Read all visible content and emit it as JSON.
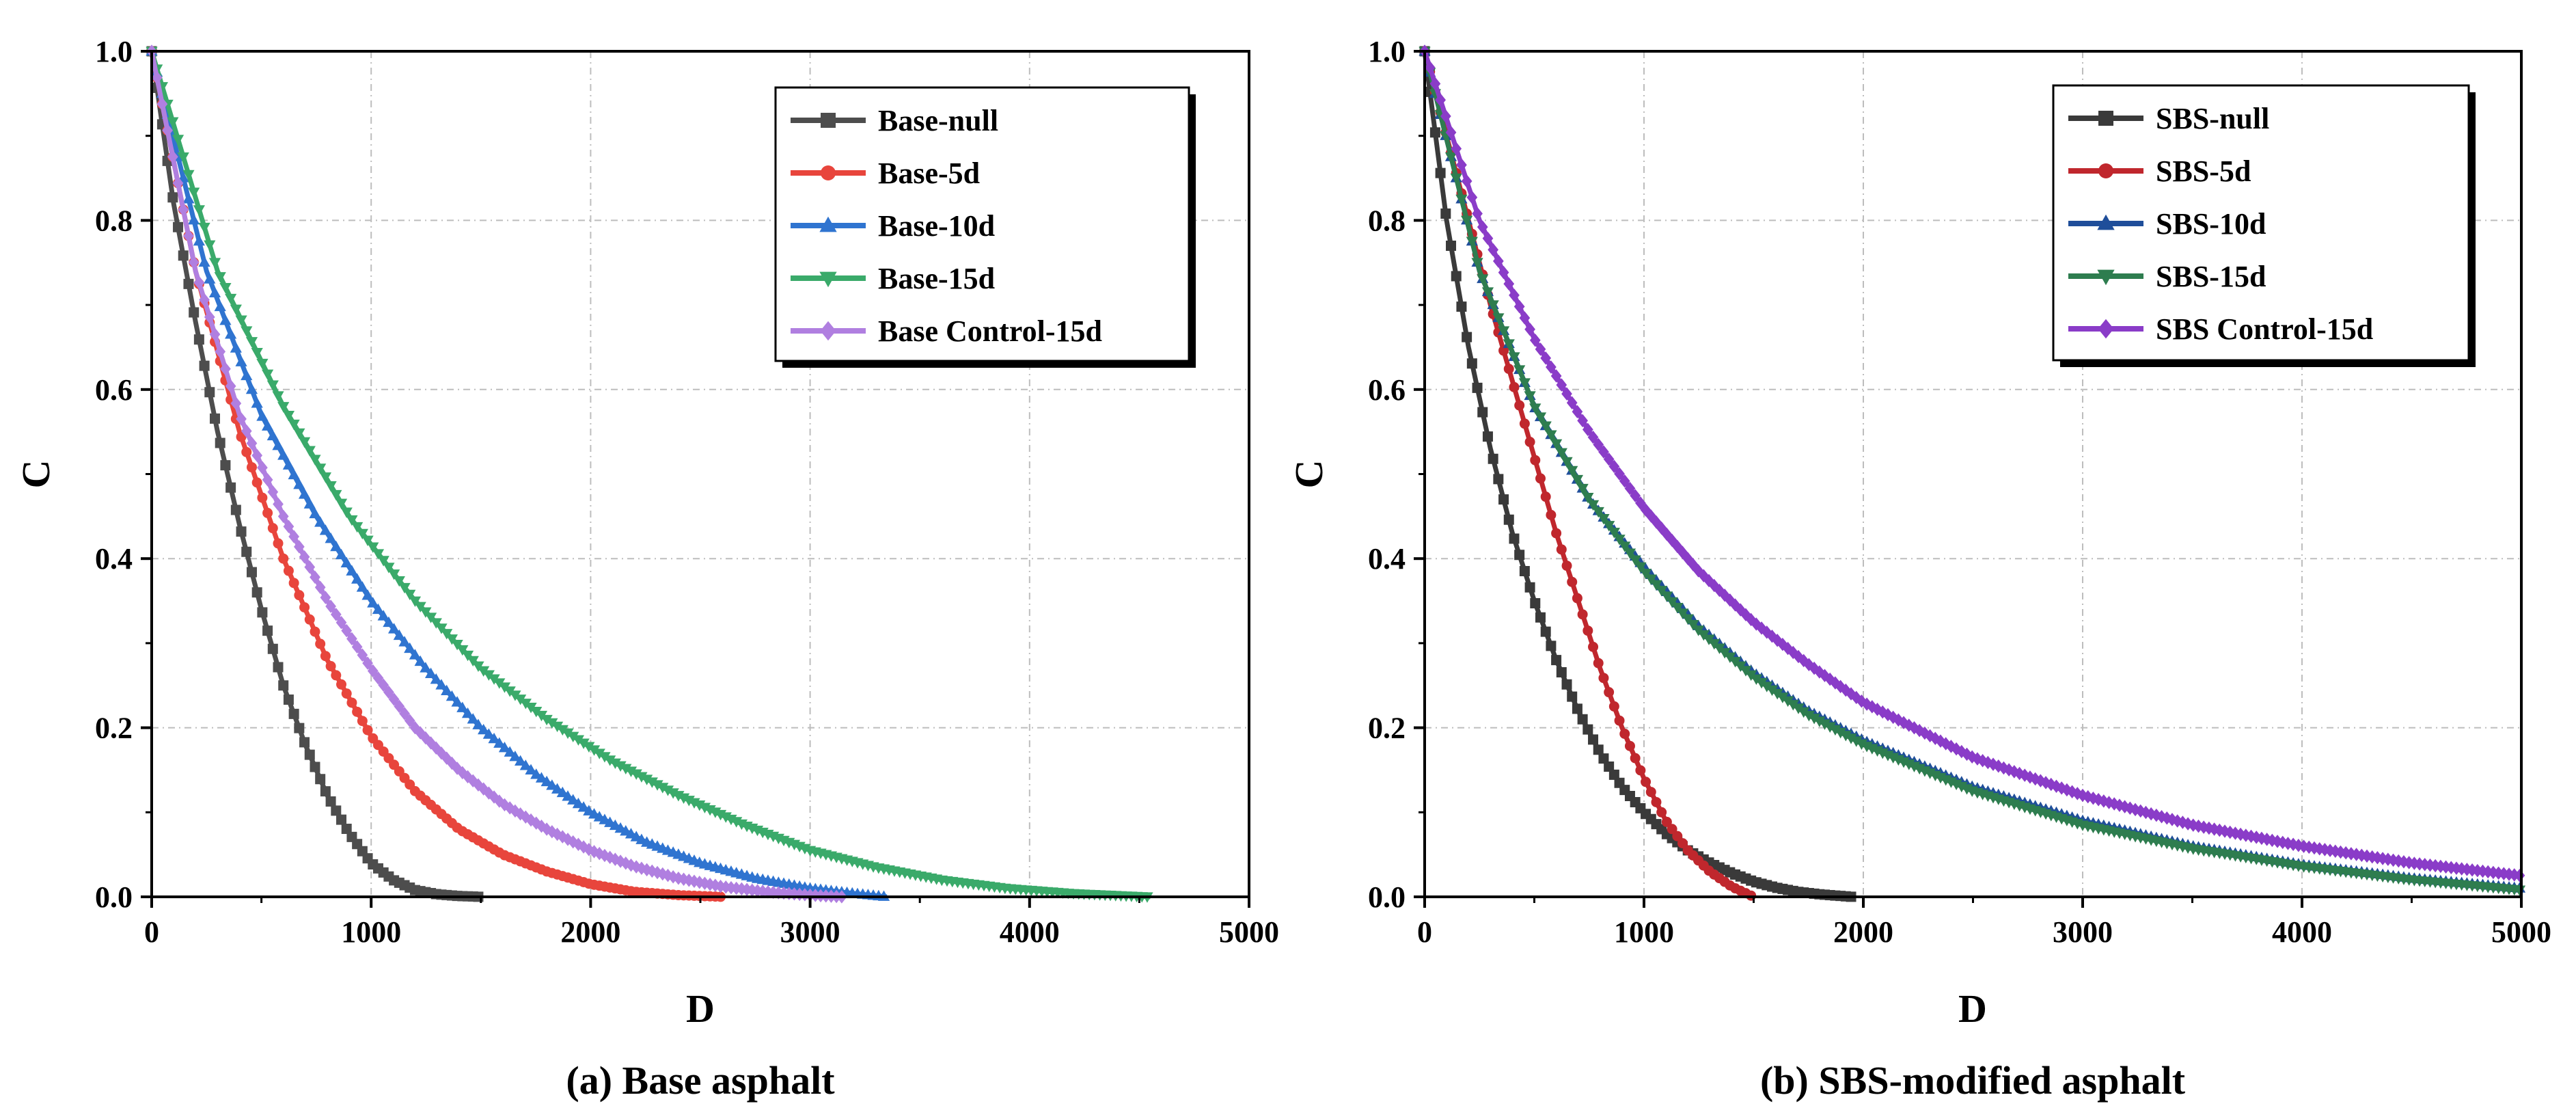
{
  "chart_data": [
    {
      "type": "line",
      "caption": "(a) Base asphalt",
      "xlabel": "D",
      "ylabel": "C",
      "xlim": [
        0,
        5000
      ],
      "ylim": [
        0,
        1.0
      ],
      "xticks": [
        "0",
        "1000",
        "2000",
        "3000",
        "4000",
        "5000"
      ],
      "yticks": [
        "0.0",
        "0.2",
        "0.4",
        "0.6",
        "0.8",
        "1.0"
      ],
      "grid": true,
      "legend_position": "top-right",
      "series": [
        {
          "name": "Base-null",
          "color": "#4d4d4d",
          "marker": "square",
          "x": [
            0,
            100,
            200,
            300,
            400,
            500,
            600,
            700,
            800,
            900,
            1000,
            1100,
            1200,
            1300,
            1400,
            1500
          ],
          "y": [
            1.0,
            0.82,
            0.68,
            0.55,
            0.44,
            0.34,
            0.25,
            0.18,
            0.12,
            0.075,
            0.04,
            0.02,
            0.008,
            0.003,
            0.001,
            0.0
          ]
        },
        {
          "name": "Base-5d",
          "color": "#e8453c",
          "marker": "circle",
          "x": [
            0,
            200,
            400,
            600,
            800,
            1000,
            1200,
            1400,
            1600,
            1800,
            2000,
            2200,
            2400,
            2600
          ],
          "y": [
            1.0,
            0.74,
            0.55,
            0.4,
            0.28,
            0.19,
            0.125,
            0.08,
            0.05,
            0.03,
            0.015,
            0.006,
            0.002,
            0.0
          ]
        },
        {
          "name": "Base-10d",
          "color": "#2f74d0",
          "marker": "triangle-up",
          "x": [
            0,
            250,
            500,
            750,
            1000,
            1250,
            1500,
            1750,
            2000,
            2250,
            2500,
            2750,
            3000,
            3200,
            3350
          ],
          "y": [
            1.0,
            0.74,
            0.57,
            0.45,
            0.35,
            0.27,
            0.2,
            0.145,
            0.1,
            0.065,
            0.04,
            0.022,
            0.01,
            0.004,
            0.0
          ]
        },
        {
          "name": "Base-15d",
          "color": "#3aaa6a",
          "marker": "triangle-down",
          "x": [
            0,
            300,
            600,
            900,
            1200,
            1500,
            1800,
            2100,
            2400,
            2700,
            3000,
            3300,
            3600,
            3900,
            4200,
            4550
          ],
          "y": [
            1.0,
            0.74,
            0.58,
            0.45,
            0.35,
            0.27,
            0.21,
            0.16,
            0.12,
            0.085,
            0.055,
            0.035,
            0.02,
            0.01,
            0.004,
            0.0
          ]
        },
        {
          "name": "Base Control-15d",
          "color": "#b07fe0",
          "marker": "diamond",
          "x": [
            0,
            200,
            400,
            600,
            800,
            1000,
            1200,
            1400,
            1600,
            1800,
            2000,
            2200,
            2400,
            2600,
            2800,
            3000,
            3150
          ],
          "y": [
            1.0,
            0.74,
            0.57,
            0.45,
            0.35,
            0.27,
            0.2,
            0.15,
            0.11,
            0.08,
            0.055,
            0.036,
            0.022,
            0.012,
            0.006,
            0.002,
            0.0
          ]
        }
      ]
    },
    {
      "type": "line",
      "caption": "(b) SBS-modified asphalt",
      "xlabel": "D",
      "ylabel": "C",
      "xlim": [
        0,
        5000
      ],
      "ylim": [
        0,
        1.0
      ],
      "xticks": [
        "0",
        "1000",
        "2000",
        "3000",
        "4000",
        "5000"
      ],
      "yticks": [
        "0.0",
        "0.2",
        "0.4",
        "0.6",
        "0.8",
        "1.0"
      ],
      "grid": true,
      "legend_position": "top-right",
      "series": [
        {
          "name": "SBS-null",
          "color": "#3a3a3a",
          "marker": "square",
          "x": [
            0,
            100,
            200,
            300,
            400,
            500,
            600,
            700,
            800,
            900,
            1000,
            1100,
            1200,
            1300,
            1400,
            1500,
            1600,
            1700,
            1800,
            1950
          ],
          "y": [
            1.0,
            0.8,
            0.65,
            0.53,
            0.43,
            0.35,
            0.28,
            0.22,
            0.17,
            0.13,
            0.1,
            0.075,
            0.055,
            0.04,
            0.028,
            0.018,
            0.011,
            0.006,
            0.003,
            0.0
          ]
        },
        {
          "name": "SBS-5d",
          "color": "#c0272d",
          "marker": "circle",
          "x": [
            0,
            100,
            200,
            300,
            400,
            500,
            600,
            700,
            800,
            900,
            1000,
            1100,
            1200,
            1300,
            1400,
            1500
          ],
          "y": [
            1.0,
            0.9,
            0.8,
            0.7,
            0.61,
            0.52,
            0.43,
            0.35,
            0.27,
            0.2,
            0.14,
            0.09,
            0.055,
            0.03,
            0.012,
            0.0
          ]
        },
        {
          "name": "SBS-10d",
          "color": "#1f4e9a",
          "marker": "triangle-up",
          "x": [
            0,
            250,
            500,
            750,
            1000,
            1250,
            1500,
            1750,
            2000,
            2500,
            3000,
            3500,
            4000,
            4500,
            5000
          ],
          "y": [
            1.0,
            0.74,
            0.58,
            0.47,
            0.39,
            0.32,
            0.265,
            0.22,
            0.185,
            0.13,
            0.09,
            0.06,
            0.038,
            0.022,
            0.01
          ]
        },
        {
          "name": "SBS-15d",
          "color": "#2e7d4f",
          "marker": "triangle-down",
          "x": [
            0,
            250,
            500,
            750,
            1000,
            1250,
            1500,
            1750,
            2000,
            2500,
            3000,
            3500,
            4000,
            4500,
            5000
          ],
          "y": [
            1.0,
            0.74,
            0.58,
            0.47,
            0.385,
            0.315,
            0.26,
            0.215,
            0.18,
            0.125,
            0.085,
            0.057,
            0.036,
            0.02,
            0.008
          ]
        },
        {
          "name": "SBS Control-15d",
          "color": "#8a3cc8",
          "marker": "diamond",
          "x": [
            0,
            250,
            500,
            750,
            1000,
            1250,
            1500,
            1750,
            2000,
            2500,
            3000,
            3500,
            4000,
            4500,
            5000
          ],
          "y": [
            1.0,
            0.8,
            0.66,
            0.55,
            0.46,
            0.385,
            0.325,
            0.275,
            0.23,
            0.165,
            0.12,
            0.085,
            0.06,
            0.04,
            0.025
          ]
        }
      ]
    }
  ]
}
